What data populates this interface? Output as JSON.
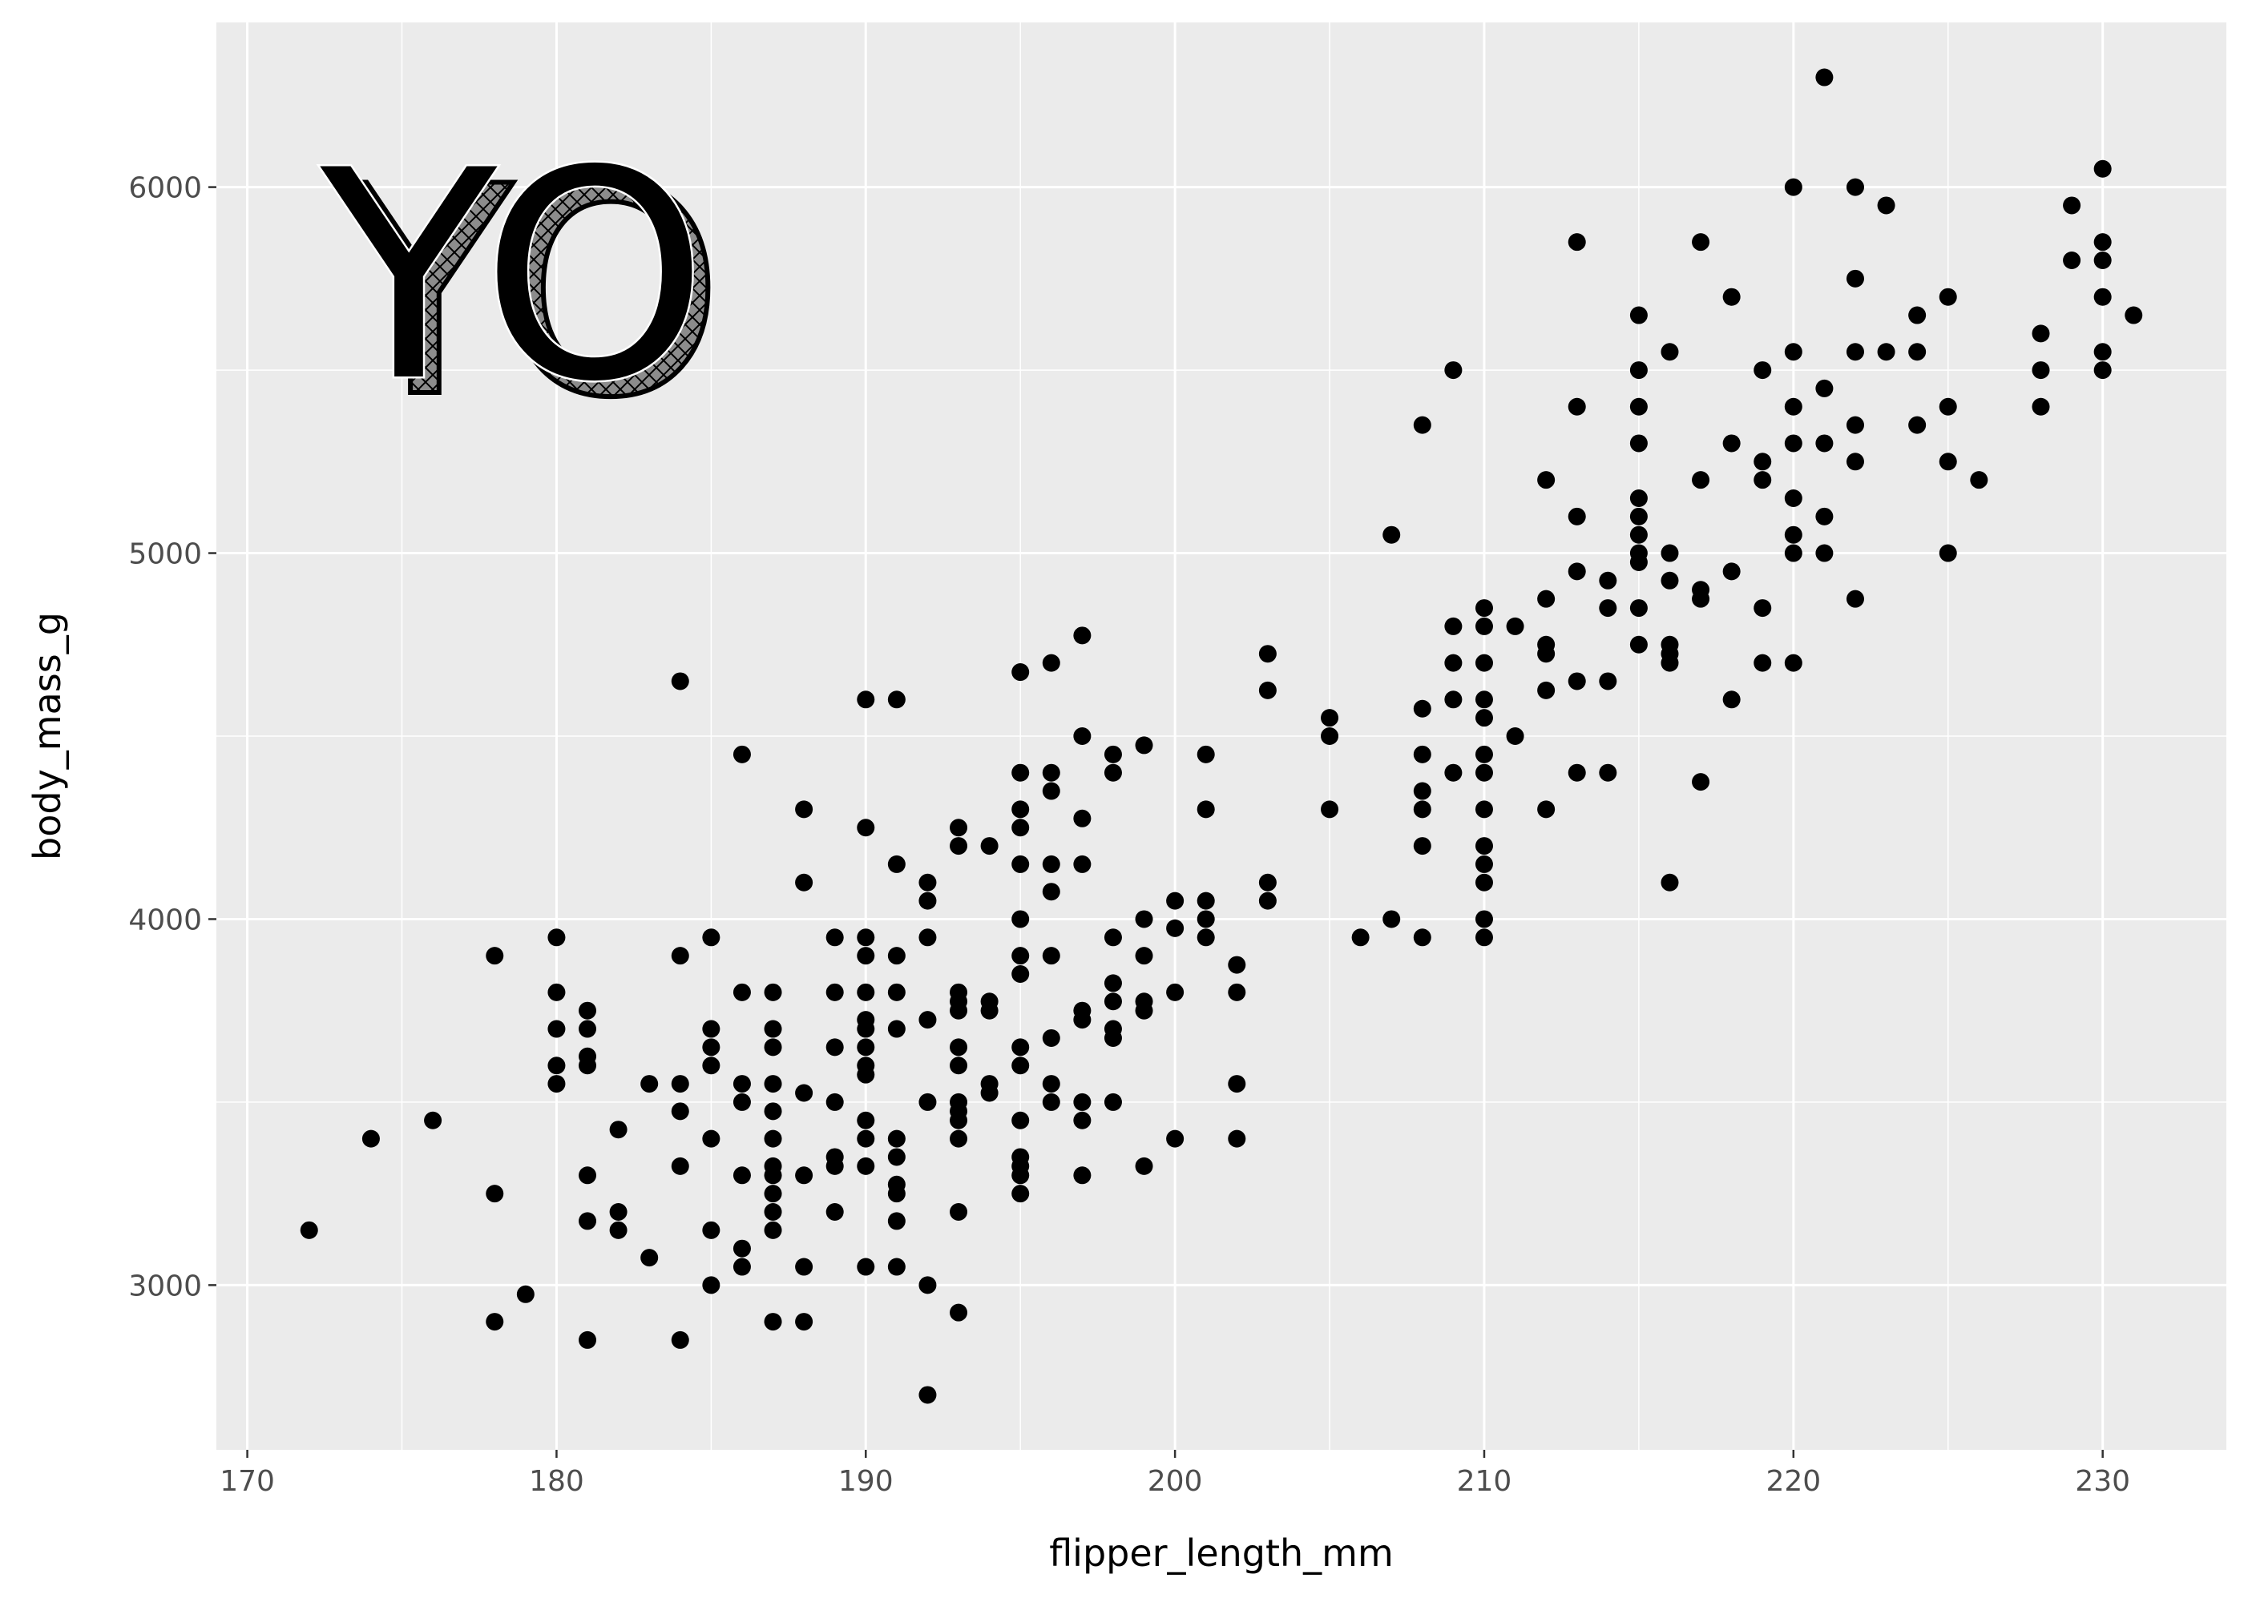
{
  "chart_data": {
    "type": "scatter",
    "xlabel": "flipper_length_mm",
    "ylabel": "body_mass_g",
    "xlim": [
      169,
      234
    ],
    "ylim": [
      2550,
      6450
    ],
    "x_ticks": [
      170,
      180,
      190,
      200,
      210,
      220,
      230
    ],
    "y_ticks": [
      3000,
      4000,
      5000,
      6000
    ],
    "x_tick_labels": [
      "170",
      "180",
      "190",
      "200",
      "210",
      "220",
      "230"
    ],
    "y_tick_labels": [
      "3000",
      "4000",
      "5000",
      "6000"
    ],
    "grid": true,
    "panel_color": "#ebebeb",
    "grid_color": "#ffffff",
    "point_color": "#000000",
    "annotation": "YO",
    "points": [
      [
        172,
        3150
      ],
      [
        174,
        3400
      ],
      [
        176,
        3450
      ],
      [
        178,
        3900
      ],
      [
        178,
        3250
      ],
      [
        178,
        2900
      ],
      [
        179,
        2975
      ],
      [
        180,
        3950
      ],
      [
        180,
        3800
      ],
      [
        180,
        3700
      ],
      [
        180,
        3600
      ],
      [
        180,
        3550
      ],
      [
        181,
        3750
      ],
      [
        181,
        3700
      ],
      [
        181,
        3625
      ],
      [
        181,
        3600
      ],
      [
        181,
        3300
      ],
      [
        181,
        3175
      ],
      [
        181,
        2850
      ],
      [
        182,
        3425
      ],
      [
        182,
        3200
      ],
      [
        182,
        3150
      ],
      [
        183,
        3550
      ],
      [
        183,
        3075
      ],
      [
        184,
        4650
      ],
      [
        184,
        3900
      ],
      [
        184,
        3550
      ],
      [
        184,
        3475
      ],
      [
        184,
        3325
      ],
      [
        184,
        2850
      ],
      [
        185,
        3950
      ],
      [
        185,
        3700
      ],
      [
        185,
        3650
      ],
      [
        185,
        3600
      ],
      [
        185,
        3400
      ],
      [
        185,
        3150
      ],
      [
        185,
        3000
      ],
      [
        186,
        4450
      ],
      [
        186,
        3800
      ],
      [
        186,
        3550
      ],
      [
        186,
        3500
      ],
      [
        186,
        3300
      ],
      [
        186,
        3100
      ],
      [
        186,
        3050
      ],
      [
        187,
        3800
      ],
      [
        187,
        3700
      ],
      [
        187,
        3650
      ],
      [
        187,
        3550
      ],
      [
        187,
        3475
      ],
      [
        187,
        3400
      ],
      [
        187,
        3325
      ],
      [
        187,
        3300
      ],
      [
        187,
        3250
      ],
      [
        187,
        3200
      ],
      [
        187,
        3150
      ],
      [
        187,
        2900
      ],
      [
        188,
        4300
      ],
      [
        188,
        4100
      ],
      [
        188,
        3525
      ],
      [
        188,
        3300
      ],
      [
        188,
        3050
      ],
      [
        188,
        2900
      ],
      [
        189,
        3950
      ],
      [
        189,
        3800
      ],
      [
        189,
        3650
      ],
      [
        189,
        3500
      ],
      [
        189,
        3350
      ],
      [
        189,
        3325
      ],
      [
        189,
        3200
      ],
      [
        190,
        4600
      ],
      [
        190,
        4250
      ],
      [
        190,
        3950
      ],
      [
        190,
        3900
      ],
      [
        190,
        3800
      ],
      [
        190,
        3725
      ],
      [
        190,
        3700
      ],
      [
        190,
        3650
      ],
      [
        190,
        3600
      ],
      [
        190,
        3575
      ],
      [
        190,
        3450
      ],
      [
        190,
        3400
      ],
      [
        190,
        3325
      ],
      [
        190,
        3050
      ],
      [
        191,
        4600
      ],
      [
        191,
        4150
      ],
      [
        191,
        3900
      ],
      [
        191,
        3800
      ],
      [
        191,
        3700
      ],
      [
        191,
        3400
      ],
      [
        191,
        3350
      ],
      [
        191,
        3275
      ],
      [
        191,
        3250
      ],
      [
        191,
        3175
      ],
      [
        191,
        3050
      ],
      [
        192,
        4100
      ],
      [
        192,
        4050
      ],
      [
        192,
        3950
      ],
      [
        192,
        3725
      ],
      [
        192,
        3500
      ],
      [
        192,
        3000
      ],
      [
        192,
        2700
      ],
      [
        193,
        4250
      ],
      [
        193,
        4200
      ],
      [
        193,
        3800
      ],
      [
        193,
        3775
      ],
      [
        193,
        3750
      ],
      [
        193,
        3650
      ],
      [
        193,
        3600
      ],
      [
        193,
        3500
      ],
      [
        193,
        3475
      ],
      [
        193,
        3450
      ],
      [
        193,
        3400
      ],
      [
        193,
        3200
      ],
      [
        193,
        2925
      ],
      [
        194,
        4200
      ],
      [
        194,
        3775
      ],
      [
        194,
        3750
      ],
      [
        194,
        3550
      ],
      [
        194,
        3525
      ],
      [
        195,
        4675
      ],
      [
        195,
        4400
      ],
      [
        195,
        4300
      ],
      [
        195,
        4250
      ],
      [
        195,
        4150
      ],
      [
        195,
        4000
      ],
      [
        195,
        3900
      ],
      [
        195,
        3850
      ],
      [
        195,
        3650
      ],
      [
        195,
        3600
      ],
      [
        195,
        3450
      ],
      [
        195,
        3350
      ],
      [
        195,
        3325
      ],
      [
        195,
        3300
      ],
      [
        195,
        3250
      ],
      [
        196,
        4700
      ],
      [
        196,
        4400
      ],
      [
        196,
        4350
      ],
      [
        196,
        4150
      ],
      [
        196,
        4075
      ],
      [
        196,
        3900
      ],
      [
        196,
        3675
      ],
      [
        196,
        3550
      ],
      [
        196,
        3500
      ],
      [
        197,
        4775
      ],
      [
        197,
        4500
      ],
      [
        197,
        4275
      ],
      [
        197,
        4150
      ],
      [
        197,
        3750
      ],
      [
        197,
        3725
      ],
      [
        197,
        3500
      ],
      [
        197,
        3450
      ],
      [
        197,
        3300
      ],
      [
        198,
        4450
      ],
      [
        198,
        4400
      ],
      [
        198,
        3950
      ],
      [
        198,
        3825
      ],
      [
        198,
        3775
      ],
      [
        198,
        3700
      ],
      [
        198,
        3675
      ],
      [
        198,
        3500
      ],
      [
        199,
        4475
      ],
      [
        199,
        4000
      ],
      [
        199,
        3900
      ],
      [
        199,
        3775
      ],
      [
        199,
        3750
      ],
      [
        199,
        3325
      ],
      [
        200,
        4050
      ],
      [
        200,
        3975
      ],
      [
        200,
        3800
      ],
      [
        200,
        3400
      ],
      [
        201,
        4450
      ],
      [
        201,
        4300
      ],
      [
        201,
        4050
      ],
      [
        201,
        4000
      ],
      [
        201,
        3950
      ],
      [
        202,
        3875
      ],
      [
        202,
        3800
      ],
      [
        202,
        3550
      ],
      [
        202,
        3400
      ],
      [
        203,
        4725
      ],
      [
        203,
        4625
      ],
      [
        203,
        4100
      ],
      [
        203,
        4050
      ],
      [
        205,
        4550
      ],
      [
        205,
        4500
      ],
      [
        205,
        4300
      ],
      [
        206,
        3950
      ],
      [
        207,
        5050
      ],
      [
        207,
        4000
      ],
      [
        208,
        5350
      ],
      [
        208,
        4575
      ],
      [
        208,
        4450
      ],
      [
        208,
        4350
      ],
      [
        208,
        4300
      ],
      [
        208,
        4200
      ],
      [
        208,
        3950
      ],
      [
        209,
        5500
      ],
      [
        209,
        4800
      ],
      [
        209,
        4700
      ],
      [
        209,
        4600
      ],
      [
        209,
        4400
      ],
      [
        210,
        4850
      ],
      [
        210,
        4800
      ],
      [
        210,
        4700
      ],
      [
        210,
        4600
      ],
      [
        210,
        4550
      ],
      [
        210,
        4450
      ],
      [
        210,
        4400
      ],
      [
        210,
        4300
      ],
      [
        210,
        4200
      ],
      [
        210,
        4150
      ],
      [
        210,
        4100
      ],
      [
        210,
        4000
      ],
      [
        210,
        3950
      ],
      [
        211,
        4800
      ],
      [
        211,
        4500
      ],
      [
        212,
        5200
      ],
      [
        212,
        4875
      ],
      [
        212,
        4750
      ],
      [
        212,
        4725
      ],
      [
        212,
        4625
      ],
      [
        212,
        4300
      ],
      [
        213,
        5850
      ],
      [
        213,
        5400
      ],
      [
        213,
        5100
      ],
      [
        213,
        4950
      ],
      [
        213,
        4650
      ],
      [
        213,
        4400
      ],
      [
        214,
        4925
      ],
      [
        214,
        4850
      ],
      [
        214,
        4650
      ],
      [
        214,
        4400
      ],
      [
        215,
        5650
      ],
      [
        215,
        5500
      ],
      [
        215,
        5400
      ],
      [
        215,
        5300
      ],
      [
        215,
        5150
      ],
      [
        215,
        5100
      ],
      [
        215,
        5050
      ],
      [
        215,
        5000
      ],
      [
        215,
        4975
      ],
      [
        215,
        4850
      ],
      [
        215,
        4750
      ],
      [
        216,
        5550
      ],
      [
        216,
        5000
      ],
      [
        216,
        4925
      ],
      [
        216,
        4750
      ],
      [
        216,
        4725
      ],
      [
        216,
        4700
      ],
      [
        216,
        4100
      ],
      [
        217,
        5850
      ],
      [
        217,
        5200
      ],
      [
        217,
        4900
      ],
      [
        217,
        4875
      ],
      [
        217,
        4375
      ],
      [
        218,
        5700
      ],
      [
        218,
        5300
      ],
      [
        218,
        4950
      ],
      [
        218,
        4600
      ],
      [
        219,
        5500
      ],
      [
        219,
        5250
      ],
      [
        219,
        5200
      ],
      [
        219,
        4850
      ],
      [
        219,
        4700
      ],
      [
        220,
        6000
      ],
      [
        220,
        5550
      ],
      [
        220,
        5400
      ],
      [
        220,
        5300
      ],
      [
        220,
        5150
      ],
      [
        220,
        5050
      ],
      [
        220,
        5000
      ],
      [
        220,
        4700
      ],
      [
        221,
        6300
      ],
      [
        221,
        5450
      ],
      [
        221,
        5300
      ],
      [
        221,
        5100
      ],
      [
        221,
        5000
      ],
      [
        222,
        6000
      ],
      [
        222,
        5750
      ],
      [
        222,
        5550
      ],
      [
        222,
        5350
      ],
      [
        222,
        5250
      ],
      [
        222,
        4875
      ],
      [
        223,
        5950
      ],
      [
        223,
        5550
      ],
      [
        224,
        5650
      ],
      [
        224,
        5550
      ],
      [
        224,
        5350
      ],
      [
        225,
        5700
      ],
      [
        225,
        5400
      ],
      [
        225,
        5250
      ],
      [
        225,
        5000
      ],
      [
        226,
        5200
      ],
      [
        228,
        5600
      ],
      [
        228,
        5500
      ],
      [
        228,
        5400
      ],
      [
        229,
        5950
      ],
      [
        229,
        5800
      ],
      [
        230,
        6050
      ],
      [
        230,
        5850
      ],
      [
        230,
        5800
      ],
      [
        230,
        5700
      ],
      [
        230,
        5550
      ],
      [
        230,
        5500
      ],
      [
        231,
        5650
      ]
    ]
  }
}
